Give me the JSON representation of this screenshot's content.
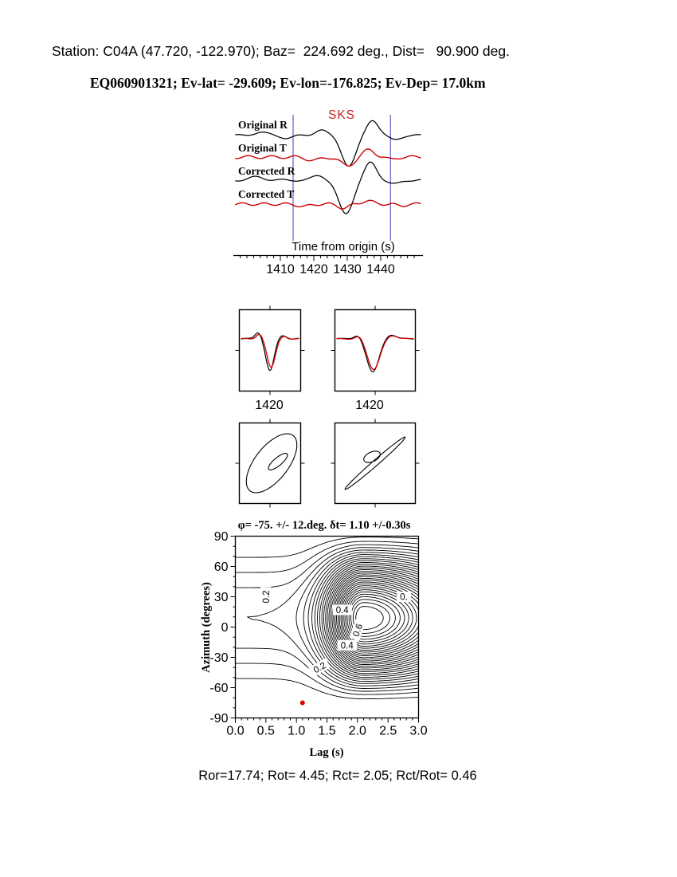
{
  "page": {
    "background": "#ffffff"
  },
  "header": {
    "station_line": "Station: C04A (47.720, -122.970); Baz=  224.692 deg., Dist=   90.900 deg.",
    "event_line": "EQ060901321; Ev-lat= -29.609; Ev-lon=-176.825; Ev-Dep= 17.0km"
  },
  "footer": {
    "stats_line": "Ror=17.74; Rot= 4.45; Rct= 2.05; Rct/Rot= 0.46"
  },
  "colors": {
    "trace_black": "#000000",
    "trace_red": "#cc0000",
    "window_line_blue": "#4040b8",
    "phase_red": "#cc2222",
    "best_dot_red": "#dd0000"
  },
  "chart_data": [
    {
      "id": "seismograms",
      "type": "line",
      "phase_label": "SKS",
      "xlabel": "Time from origin (s)",
      "x_range": [
        1396.5,
        1452
      ],
      "x_ticks": [
        1410,
        1420,
        1430,
        1440
      ],
      "window_s": [
        1413.8,
        1442.9
      ],
      "series": [
        {
          "name": "Original R",
          "color": "#000000",
          "pulses": [
            [
              4,
              1404,
              3
            ],
            [
              -3,
              1412,
              2.5
            ],
            [
              7,
              1422,
              2.5
            ],
            [
              -38,
              1430.5,
              3
            ],
            [
              20,
              1437.5,
              2.5
            ],
            [
              -5,
              1444,
              2.5
            ]
          ],
          "noise": [
            1.2,
            9,
            0
          ]
        },
        {
          "name": "Original T",
          "color": "#cc0000",
          "pulses": [
            [
              -4,
              1420,
              3
            ],
            [
              -11,
              1430,
              2.8
            ],
            [
              9,
              1436.5,
              2.5
            ],
            [
              -3,
              1443,
              2
            ]
          ],
          "noise": [
            1.8,
            7,
            1.2
          ]
        },
        {
          "name": "Corrected R",
          "color": "#000000",
          "pulses": [
            [
              4,
              1403,
              3
            ],
            [
              6,
              1421.5,
              2.5
            ],
            [
              -42,
              1429.5,
              3.1
            ],
            [
              22,
              1437,
              2.6
            ],
            [
              -5,
              1444,
              2.5
            ]
          ],
          "noise": [
            1.2,
            8.5,
            2
          ]
        },
        {
          "name": "Corrected T",
          "color": "#cc0000",
          "pulses": [
            [
              -3,
              1417,
              2.5
            ],
            [
              -5,
              1429,
              2.2
            ],
            [
              4,
              1436,
              2.5
            ],
            [
              -2,
              1446,
              2
            ]
          ],
          "noise": [
            1.6,
            6.5,
            0.5
          ]
        }
      ]
    },
    {
      "id": "waveform-compare",
      "type": "line",
      "panels": [
        {
          "label": "1420",
          "series": [
            {
              "name": "component-black",
              "color": "#000000",
              "pulses": [
                [
                  9,
                  0.3,
                  0.08
                ],
                [
                  -40,
                  0.5,
                  0.1
                ],
                [
                  5,
                  0.72,
                  0.09
                ]
              ],
              "noise": [
                1,
                0.45,
                0
              ]
            },
            {
              "name": "component-red",
              "color": "#cc0000",
              "pulses": [
                [
                  7,
                  0.32,
                  0.08
                ],
                [
                  -36,
                  0.52,
                  0.1
                ],
                [
                  4,
                  0.74,
                  0.09
                ]
              ],
              "noise": [
                0.8,
                0.5,
                1
              ]
            }
          ]
        },
        {
          "label": "1420",
          "series": [
            {
              "name": "component-black",
              "color": "#000000",
              "pulses": [
                [
                  6,
                  0.28,
                  0.07
                ],
                [
                  -42,
                  0.47,
                  0.11
                ],
                [
                  6,
                  0.7,
                  0.09
                ]
              ],
              "noise": [
                0.9,
                0.4,
                0.3
              ]
            },
            {
              "name": "component-red",
              "color": "#cc0000",
              "pulses": [
                [
                  5,
                  0.29,
                  0.07
                ],
                [
                  -39,
                  0.48,
                  0.11
                ],
                [
                  5,
                  0.71,
                  0.09
                ]
              ],
              "noise": [
                0.8,
                0.45,
                1.4
              ]
            }
          ]
        }
      ]
    },
    {
      "id": "particle-motion",
      "type": "line",
      "panels": [
        {
          "name": "original-particle-motion",
          "ellipses": [
            {
              "dx": 2,
              "dy": 0,
              "a": 44,
              "b": 21,
              "rot": -52
            },
            {
              "dx": 10,
              "dy": -2,
              "a": 15,
              "b": 5,
              "rot": -40
            }
          ]
        },
        {
          "name": "corrected-particle-motion",
          "ellipses": [
            {
              "dx": 0,
              "dy": 0,
              "a": 50,
              "b": 3.5,
              "rot": -41
            },
            {
              "dx": -4,
              "dy": -8,
              "a": 11,
              "b": 6,
              "rot": -25
            }
          ]
        }
      ]
    },
    {
      "id": "error-surface",
      "type": "contour",
      "title": "φ= -75. +/- 12.deg. δt= 1.10 +/-0.30s",
      "xlabel": "Lag (s)",
      "ylabel": "Azimuth (degrees)",
      "x_range": [
        0,
        3
      ],
      "y_range": [
        -90,
        90
      ],
      "x_ticks": [
        0,
        0.5,
        1,
        1.5,
        2,
        2.5,
        3
      ],
      "y_ticks": [
        -90,
        -60,
        -30,
        0,
        30,
        60,
        90
      ],
      "levels": {
        "min": 0.03,
        "max": 0.97,
        "step": 0.03
      },
      "surface": {
        "peak_x": 2.1,
        "peak_az": 9,
        "w_left": 0.6,
        "w_right": 1.5,
        "floor": 0.12
      },
      "best_fit": {
        "lag": 1.1,
        "azimuth": -75,
        "marker_color": "#dd0000"
      },
      "contour_labels": [
        {
          "text": "0.2",
          "x": 0.5,
          "y": 30,
          "rot": -90
        },
        {
          "text": "0.4",
          "x": 1.75,
          "y": 17,
          "rot": 0
        },
        {
          "text": "0.6",
          "x": 2.0,
          "y": -3,
          "rot": -70
        },
        {
          "text": "0.",
          "x": 2.76,
          "y": 30,
          "rot": 0
        },
        {
          "text": "0.4",
          "x": 1.83,
          "y": -18,
          "rot": 0
        },
        {
          "text": "0.2",
          "x": 1.38,
          "y": -40,
          "rot": -30
        }
      ]
    }
  ]
}
